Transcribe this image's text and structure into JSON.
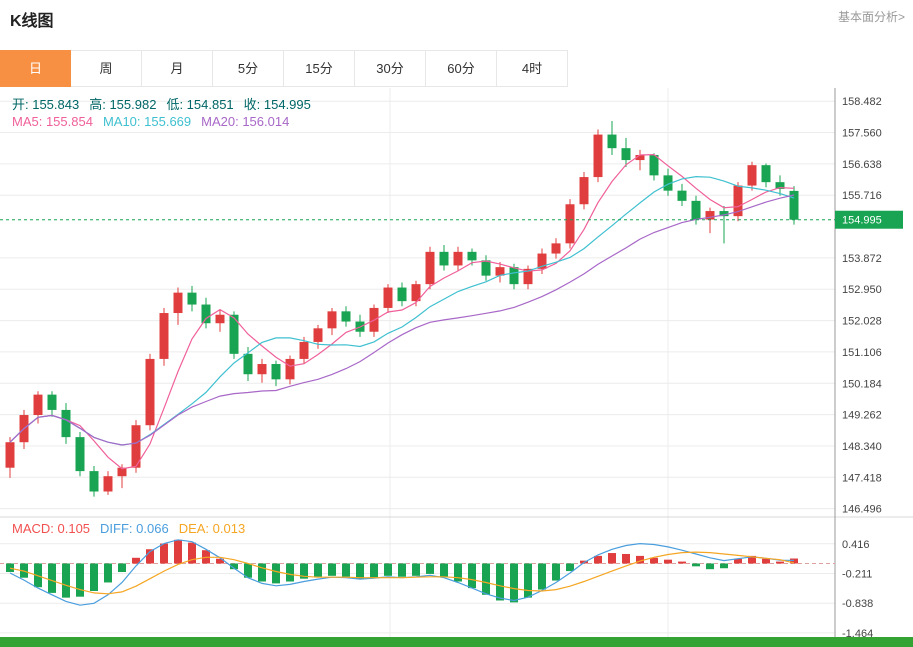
{
  "header": {
    "title": "K线图",
    "link": "基本面分析>"
  },
  "tabs": {
    "items": [
      "日",
      "周",
      "月",
      "5分",
      "15分",
      "30分",
      "60分",
      "4时"
    ],
    "active_index": 0
  },
  "legend": {
    "ohlc": [
      {
        "name": "open",
        "label": "开:",
        "value": "155.843"
      },
      {
        "name": "high",
        "label": "高:",
        "value": "155.982"
      },
      {
        "name": "low",
        "label": "低:",
        "value": "154.851"
      },
      {
        "name": "close",
        "label": "收:",
        "value": "154.995"
      }
    ],
    "ohlc_color": "#006666",
    "ma": [
      {
        "name": "ma5",
        "label": "MA5:",
        "value": "155.854",
        "color": "#f0609a"
      },
      {
        "name": "ma10",
        "label": "MA10:",
        "value": "155.669",
        "color": "#3fc0d0"
      },
      {
        "name": "ma20",
        "label": "MA20:",
        "value": "156.014",
        "color": "#a868c8"
      }
    ]
  },
  "macd_legend": [
    {
      "name": "macd",
      "label": "MACD:",
      "value": "0.105",
      "color": "#f25050"
    },
    {
      "name": "diff",
      "label": "DIFF:",
      "value": "0.066",
      "color": "#4a9ede"
    },
    {
      "name": "dea",
      "label": "DEA:",
      "value": "0.013",
      "color": "#f5a623"
    }
  ],
  "colors": {
    "up": "#e03e3e",
    "down": "#18a452",
    "tab_active_bg": "#f79043",
    "price_line": "#18a452",
    "price_tag_bg": "#18a452",
    "ma5": "#f0609a",
    "ma10": "#3fc0d0",
    "ma20": "#a868c8",
    "diff_line": "#4a9ede",
    "dea_line": "#f5a623",
    "grid": "#ececec",
    "axis": "#9a9a9a",
    "tick_text": "#444444",
    "separator": "#d8d8d8",
    "zero_dash": "#dca0a0",
    "bottom_bar": "#33a433"
  },
  "chart_data": {
    "type": "candlestick",
    "title": "K线图",
    "current_price": 154.995,
    "price_tag_label": "154.995",
    "y_axis_main": {
      "ticks": [
        158.482,
        157.56,
        156.638,
        155.716,
        153.872,
        152.95,
        152.028,
        151.106,
        150.184,
        149.262,
        148.34,
        147.418,
        146.496
      ],
      "range": [
        146.25,
        158.87
      ],
      "grid": true,
      "side": "right"
    },
    "y_axis_macd": {
      "ticks": [
        0.416,
        -0.211,
        -0.838,
        -1.464
      ],
      "range": [
        -1.55,
        0.98
      ],
      "grid": true,
      "side": "right"
    },
    "ma_periods": [
      5,
      10,
      20
    ],
    "candles": [
      [
        147.7,
        148.6,
        147.4,
        148.45
      ],
      [
        148.45,
        149.4,
        148.25,
        149.25
      ],
      [
        149.25,
        149.95,
        149.0,
        149.85
      ],
      [
        149.85,
        149.95,
        149.2,
        149.4
      ],
      [
        149.4,
        149.6,
        148.4,
        148.6
      ],
      [
        148.6,
        148.75,
        147.45,
        147.6
      ],
      [
        147.6,
        147.75,
        146.85,
        147.0
      ],
      [
        147.0,
        147.6,
        146.9,
        147.45
      ],
      [
        147.45,
        147.8,
        147.1,
        147.7
      ],
      [
        147.7,
        149.1,
        147.55,
        148.95
      ],
      [
        148.95,
        151.05,
        148.8,
        150.9
      ],
      [
        150.9,
        152.4,
        150.7,
        152.25
      ],
      [
        152.25,
        153.0,
        151.9,
        152.85
      ],
      [
        152.85,
        153.05,
        152.3,
        152.5
      ],
      [
        152.5,
        152.7,
        151.8,
        151.95
      ],
      [
        151.95,
        152.35,
        151.7,
        152.2
      ],
      [
        152.2,
        152.3,
        150.9,
        151.05
      ],
      [
        151.05,
        151.25,
        150.25,
        150.45
      ],
      [
        150.45,
        150.9,
        150.2,
        150.75
      ],
      [
        150.75,
        150.85,
        150.1,
        150.3
      ],
      [
        150.3,
        151.0,
        150.15,
        150.9
      ],
      [
        150.9,
        151.55,
        150.75,
        151.4
      ],
      [
        151.4,
        151.9,
        151.2,
        151.8
      ],
      [
        151.8,
        152.4,
        151.6,
        152.3
      ],
      [
        152.3,
        152.45,
        151.85,
        152.0
      ],
      [
        152.0,
        152.2,
        151.55,
        151.7
      ],
      [
        151.7,
        152.5,
        151.55,
        152.4
      ],
      [
        152.4,
        153.1,
        152.25,
        153.0
      ],
      [
        153.0,
        153.15,
        152.45,
        152.6
      ],
      [
        152.6,
        153.2,
        152.45,
        153.1
      ],
      [
        153.1,
        154.2,
        152.95,
        154.05
      ],
      [
        154.05,
        154.25,
        153.5,
        153.65
      ],
      [
        153.65,
        154.2,
        153.5,
        154.05
      ],
      [
        154.05,
        154.15,
        153.65,
        153.8
      ],
      [
        153.8,
        153.95,
        153.2,
        153.35
      ],
      [
        153.35,
        153.75,
        153.15,
        153.6
      ],
      [
        153.6,
        153.7,
        152.95,
        153.1
      ],
      [
        153.1,
        153.65,
        152.95,
        153.55
      ],
      [
        153.55,
        154.15,
        153.4,
        154.0
      ],
      [
        154.0,
        154.45,
        153.85,
        154.3
      ],
      [
        154.3,
        155.6,
        154.15,
        155.45
      ],
      [
        155.45,
        156.4,
        155.3,
        156.25
      ],
      [
        156.25,
        157.65,
        156.1,
        157.5
      ],
      [
        157.5,
        157.9,
        156.9,
        157.1
      ],
      [
        157.1,
        157.4,
        156.55,
        156.75
      ],
      [
        156.75,
        157.05,
        156.45,
        156.9
      ],
      [
        156.9,
        156.95,
        156.15,
        156.3
      ],
      [
        156.3,
        156.5,
        155.7,
        155.85
      ],
      [
        155.85,
        156.05,
        155.4,
        155.55
      ],
      [
        155.55,
        155.7,
        154.85,
        155.0
      ],
      [
        155.0,
        155.35,
        154.6,
        155.25
      ],
      [
        155.25,
        155.4,
        154.3,
        155.1
      ],
      [
        155.1,
        156.1,
        154.95,
        156.0
      ],
      [
        156.0,
        156.7,
        155.85,
        156.6
      ],
      [
        156.6,
        156.65,
        155.95,
        156.1
      ],
      [
        156.1,
        156.3,
        155.7,
        155.9
      ],
      [
        155.843,
        155.982,
        154.851,
        154.995
      ]
    ],
    "macd": {
      "diff": [
        -0.2,
        -0.35,
        -0.52,
        -0.66,
        -0.8,
        -0.88,
        -0.84,
        -0.66,
        -0.4,
        -0.05,
        0.25,
        0.42,
        0.5,
        0.46,
        0.3,
        0.12,
        -0.1,
        -0.3,
        -0.42,
        -0.47,
        -0.44,
        -0.38,
        -0.33,
        -0.29,
        -0.3,
        -0.33,
        -0.31,
        -0.28,
        -0.3,
        -0.28,
        -0.25,
        -0.3,
        -0.4,
        -0.52,
        -0.64,
        -0.73,
        -0.78,
        -0.71,
        -0.57,
        -0.4,
        -0.2,
        0.02,
        0.18,
        0.3,
        0.38,
        0.42,
        0.4,
        0.35,
        0.28,
        0.2,
        0.12,
        0.06,
        0.1,
        0.14,
        0.11,
        0.07,
        0.066
      ],
      "dea": [
        -0.1,
        -0.16,
        -0.26,
        -0.36,
        -0.46,
        -0.55,
        -0.62,
        -0.64,
        -0.6,
        -0.48,
        -0.32,
        -0.16,
        -0.02,
        0.08,
        0.13,
        0.13,
        0.08,
        0.0,
        -0.09,
        -0.17,
        -0.23,
        -0.27,
        -0.29,
        -0.29,
        -0.29,
        -0.3,
        -0.3,
        -0.3,
        -0.3,
        -0.29,
        -0.28,
        -0.28,
        -0.3,
        -0.34,
        -0.4,
        -0.47,
        -0.53,
        -0.57,
        -0.58,
        -0.55,
        -0.48,
        -0.38,
        -0.27,
        -0.16,
        -0.05,
        0.05,
        0.13,
        0.19,
        0.23,
        0.24,
        0.23,
        0.2,
        0.17,
        0.14,
        0.11,
        0.08,
        0.013
      ],
      "hist": [
        -0.18,
        -0.3,
        -0.5,
        -0.62,
        -0.72,
        -0.7,
        -0.58,
        -0.4,
        -0.18,
        0.12,
        0.3,
        0.42,
        0.5,
        0.44,
        0.28,
        0.1,
        -0.12,
        -0.3,
        -0.38,
        -0.42,
        -0.38,
        -0.32,
        -0.28,
        -0.26,
        -0.28,
        -0.32,
        -0.3,
        -0.26,
        -0.28,
        -0.26,
        -0.22,
        -0.28,
        -0.38,
        -0.52,
        -0.66,
        -0.78,
        -0.82,
        -0.72,
        -0.55,
        -0.36,
        -0.16,
        0.06,
        0.16,
        0.22,
        0.2,
        0.16,
        0.12,
        0.08,
        0.04,
        -0.06,
        -0.12,
        -0.1,
        0.1,
        0.16,
        0.1,
        0.04,
        0.105
      ]
    }
  }
}
